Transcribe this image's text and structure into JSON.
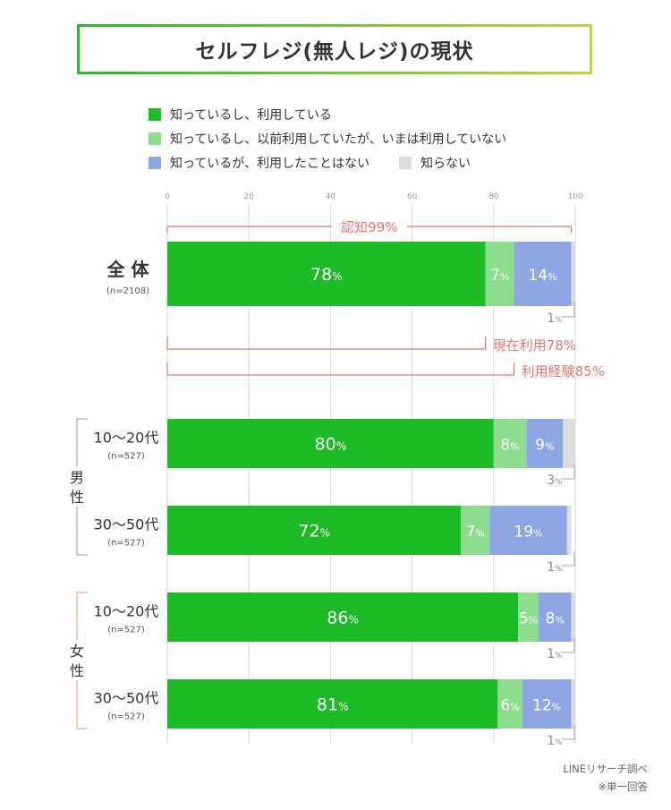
{
  "title": "セルフレジ(無人レジ)の現状",
  "colors": {
    "know_use": "#1dbb26",
    "know_used_before": "#8cdd8d",
    "know_not_use": "#8ea7e4",
    "dont_know": "#dcdcdc",
    "bracket": "#e8766c",
    "axis": "#d9d9d9",
    "male_bracket": "#8ea7e4",
    "female_bracket": "#f2a98a"
  },
  "legend": [
    {
      "label": "知っているし、利用している",
      "color": "#1dbb26"
    },
    {
      "label": "知っているし、以前利用していたが、いまは利用していない",
      "color": "#8cdd8d"
    },
    {
      "label": "知っているが、利用したことはない",
      "color": "#8ea7e4"
    },
    {
      "label": "知らない",
      "color": "#dcdcdc"
    }
  ],
  "chart_data": {
    "type": "bar",
    "stacked": true,
    "orientation": "horizontal",
    "xlim": [
      0,
      100
    ],
    "xticks": [
      "0",
      "20",
      "40",
      "60",
      "80",
      "100"
    ],
    "unit": "%",
    "series_names": [
      "知っているし、利用している",
      "知っているし、以前利用していたが、いまは利用していない",
      "知っているが、利用したことはない",
      "知らない"
    ],
    "rows": [
      {
        "label": "全 体",
        "n": "(n=2108)",
        "group": "",
        "values": [
          78,
          7,
          14,
          1
        ]
      },
      {
        "label": "10〜20代",
        "n": "(n=527)",
        "group": "男性",
        "values": [
          80,
          8,
          9,
          3
        ]
      },
      {
        "label": "30〜50代",
        "n": "(n=527)",
        "group": "男性",
        "values": [
          72,
          7,
          19,
          1
        ]
      },
      {
        "label": "10〜20代",
        "n": "(n=527)",
        "group": "女性",
        "values": [
          86,
          5,
          8,
          1
        ]
      },
      {
        "label": "30〜50代",
        "n": "(n=527)",
        "group": "女性",
        "values": [
          81,
          6,
          12,
          1
        ]
      }
    ],
    "groups": [
      {
        "label": "男",
        "label2": "性"
      },
      {
        "label": "女",
        "label2": "性"
      }
    ],
    "annotations": [
      {
        "text": "認知99%",
        "value": 99
      },
      {
        "text": "現在利用78%",
        "value": 78
      },
      {
        "text": "利用経験85%",
        "value": 85
      }
    ]
  },
  "notes": {
    "source": "LINEリサーチ調べ",
    "method": "※単一回答"
  }
}
